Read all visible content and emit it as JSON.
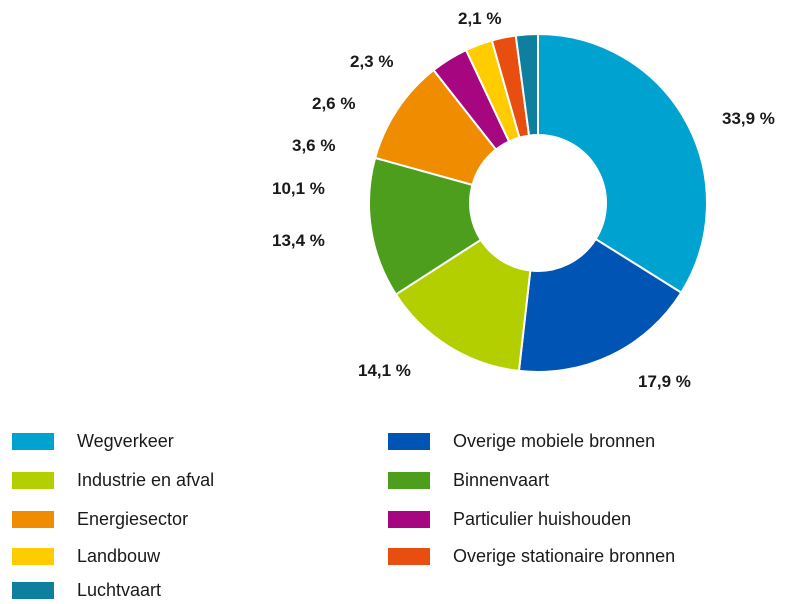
{
  "chart_data": {
    "type": "pie",
    "donut": true,
    "categories": [
      "Wegverkeer",
      "Overige mobiele bronnen",
      "Industrie en afval",
      "Binnenvaart",
      "Energiesector",
      "Particulier huishouden",
      "Landbouw",
      "Overige stationaire bronnen",
      "Luchtvaart"
    ],
    "values": [
      33.9,
      17.9,
      14.1,
      13.4,
      10.1,
      3.6,
      2.6,
      2.3,
      2.1
    ],
    "labels": [
      "33,9 %",
      "17,9 %",
      "14,1 %",
      "13,4 %",
      "10,1 %",
      "3,6 %",
      "2,6 %",
      "2,3 %",
      "2,1 %"
    ],
    "colors": [
      "#00A2CF",
      "#0055B4",
      "#B3CF00",
      "#4E9E1E",
      "#F08C00",
      "#A6067F",
      "#FFCC00",
      "#E84E0F",
      "#0E7F9E"
    ],
    "legend_position": "bottom",
    "legend_order": [
      0,
      1,
      2,
      3,
      4,
      5,
      6,
      7,
      8
    ]
  }
}
